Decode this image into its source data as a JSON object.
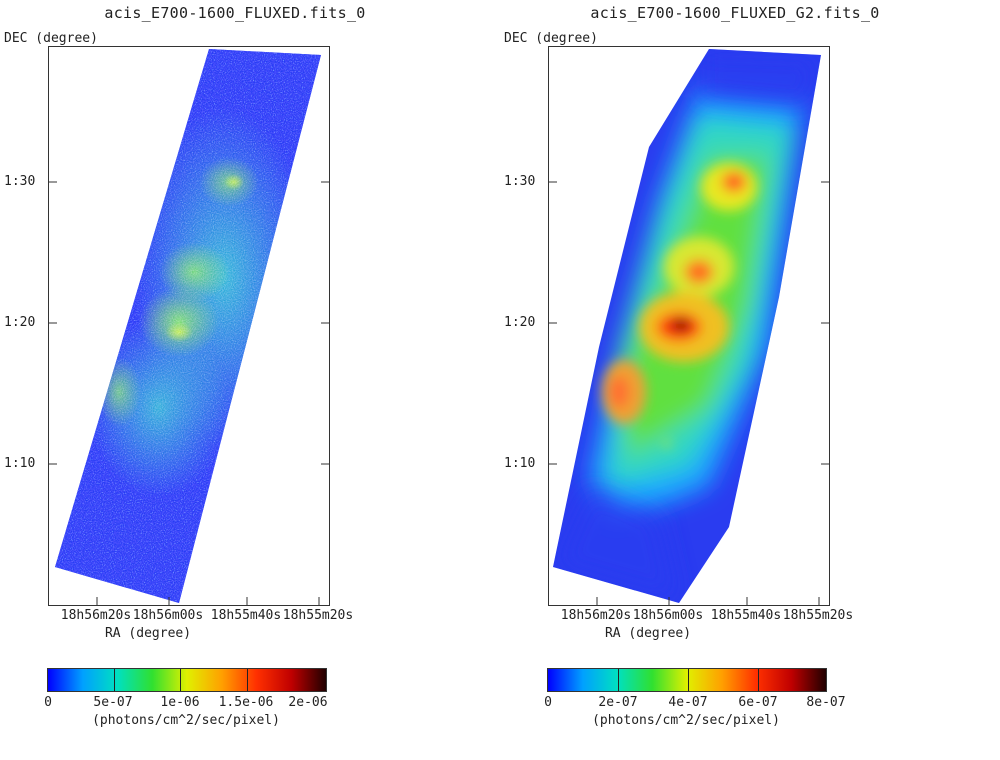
{
  "panels": [
    {
      "title": "acis_E700-1600_FLUXED.fits_0",
      "ylabel": "DEC (degree)",
      "xlabel": "RA (degree)",
      "yticks": [
        "1:30",
        "1:20",
        "1:10"
      ],
      "xticks": [
        "18h56m20s",
        "18h56m00s",
        "18h55m40s",
        "18h55m20s"
      ],
      "colorbar": {
        "ticks": [
          "0",
          "5e-07",
          "1e-06",
          "1.5e-06",
          "2e-06"
        ],
        "units": "(photons/cm^2/sec/pixel)",
        "colors": [
          "#0000ff",
          "#00a0ff",
          "#00e0c0",
          "#30e030",
          "#e0f000",
          "#ffa000",
          "#ff3000",
          "#c00000",
          "#200000"
        ]
      }
    },
    {
      "title": "acis_E700-1600_FLUXED_G2.fits_0",
      "ylabel": "DEC (degree)",
      "xlabel": "RA (degree)",
      "yticks": [
        "1:30",
        "1:20",
        "1:10"
      ],
      "xticks": [
        "18h56m20s",
        "18h56m00s",
        "18h55m40s",
        "18h55m20s"
      ],
      "colorbar": {
        "ticks": [
          "0",
          "2e-07",
          "4e-07",
          "6e-07",
          "8e-07"
        ],
        "units": "(photons/cm^2/sec/pixel)",
        "colors": [
          "#0000ff",
          "#00a0ff",
          "#00e0c0",
          "#30e030",
          "#e0f000",
          "#ffa000",
          "#ff3000",
          "#c00000",
          "#200000"
        ]
      }
    }
  ]
}
